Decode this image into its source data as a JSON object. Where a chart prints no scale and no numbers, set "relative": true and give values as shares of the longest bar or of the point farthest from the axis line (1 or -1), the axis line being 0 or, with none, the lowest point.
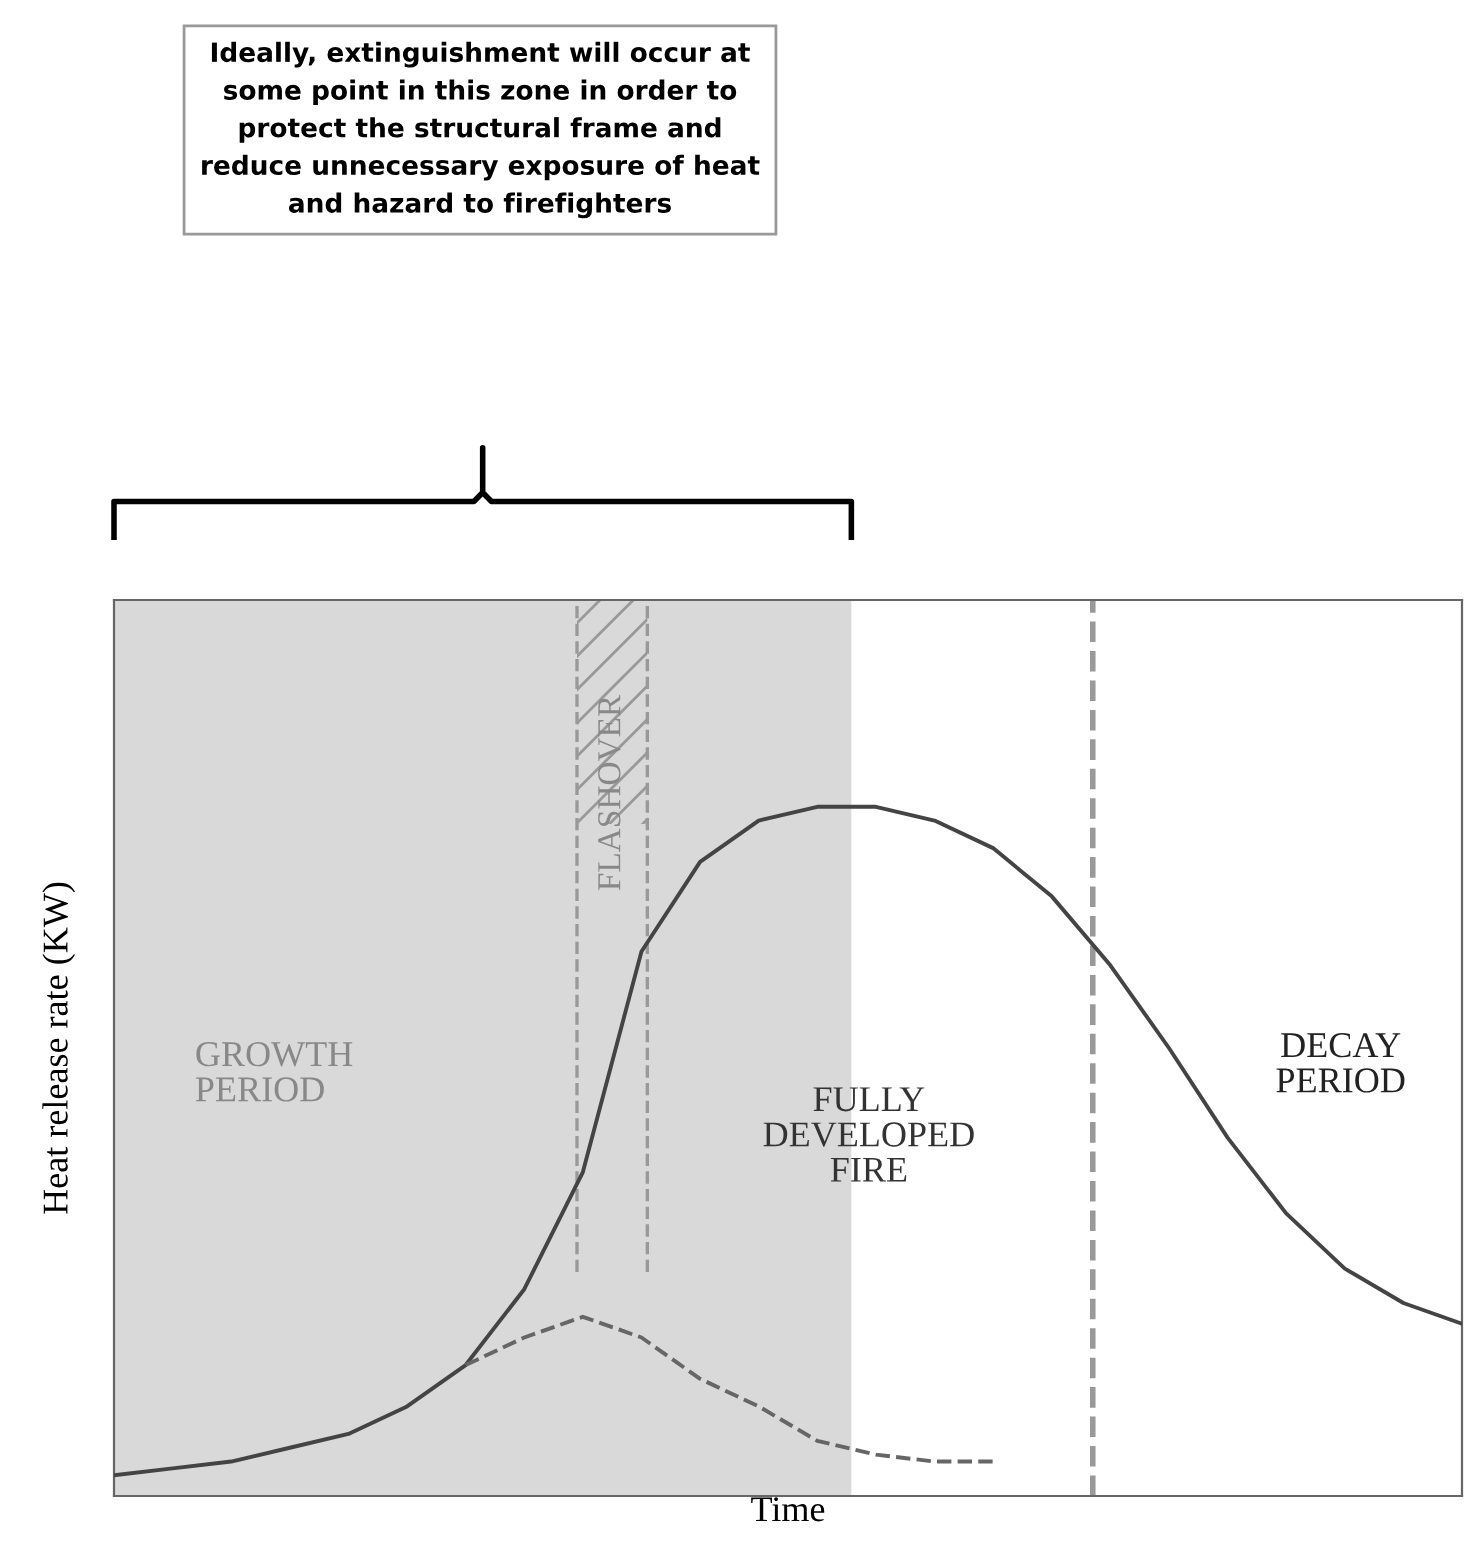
{
  "chart_data": {
    "type": "line",
    "relative": true,
    "xlabel": "Time",
    "ylabel": "Heat release rate (KW)",
    "categories": [
      null,
      null,
      null,
      null,
      null,
      null,
      null,
      null,
      null,
      null,
      null,
      null,
      null,
      null,
      null,
      null,
      null,
      null,
      null,
      null,
      null,
      null,
      null,
      null
    ],
    "series": [
      {
        "color": "#444444",
        "line_style": "solid",
        "values": [
          0.03,
          0.04,
          0.05,
          0.07,
          0.09,
          0.13,
          0.19,
          0.3,
          0.47,
          0.79,
          0.92,
          0.98,
          1.0,
          1.0,
          0.98,
          0.94,
          0.87,
          0.77,
          0.65,
          0.52,
          0.41,
          0.33,
          0.28,
          0.25
        ]
      },
      {
        "color": "#666666",
        "line_style": "dashed",
        "values": [
          null,
          null,
          null,
          null,
          null,
          null,
          0.19,
          0.23,
          0.26,
          0.23,
          0.17,
          0.13,
          0.08,
          0.06,
          0.05,
          0.05,
          null,
          null,
          null,
          null,
          null,
          null,
          null,
          null
        ]
      }
    ],
    "annotations": [
      "Ideally, extinguishment will occur at\nsome point in this zone in order to\nprotect the structural frame and\nreduce unnecessary exposure of heat\nand hazard to firefighters",
      "GROWTH PERIOD",
      "FULLY DEVELOPED FIRE",
      "DECAY PERIOD",
      "FLASHOVER"
    ],
    "grid": false,
    "legend": false,
    "marker": "none",
    "tick_labels": false
  }
}
